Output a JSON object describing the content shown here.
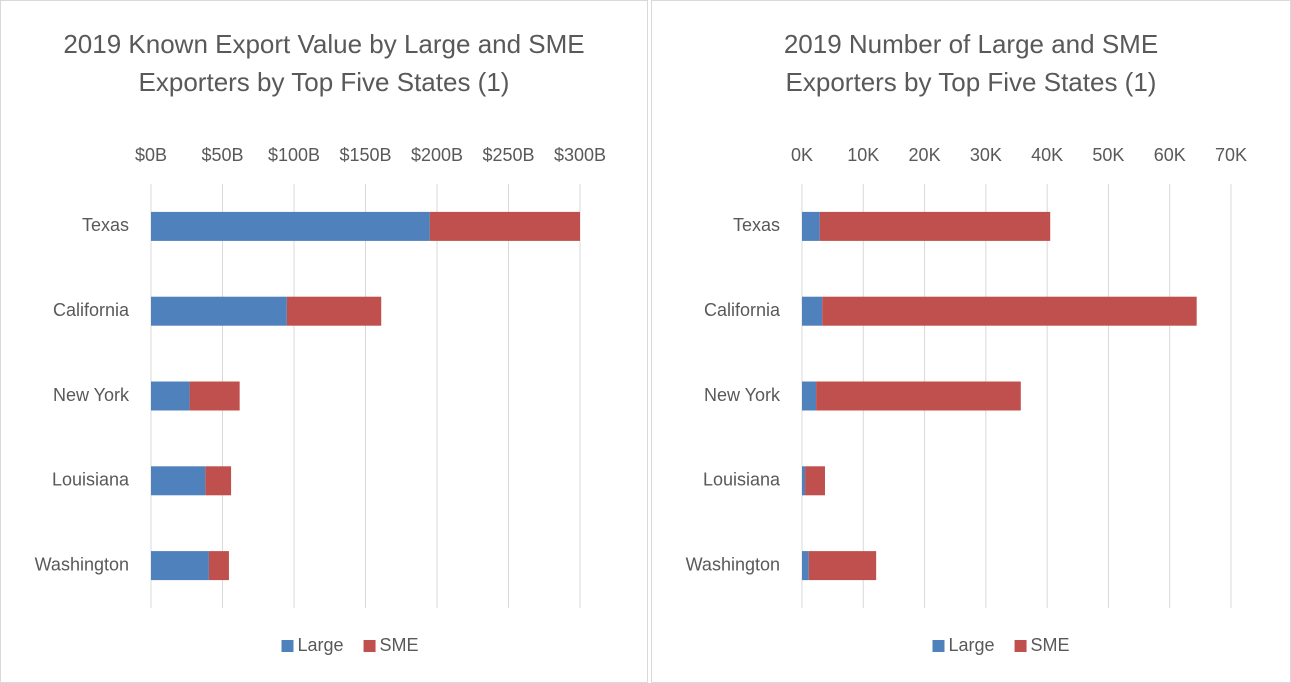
{
  "chart_data": [
    {
      "type": "stacked-barh",
      "title": "2019 Known Export Value by Large and SME Exporters by Top Five States (1)",
      "categories": [
        "Texas",
        "California",
        "New York",
        "Louisiana",
        "Washington"
      ],
      "series": [
        {
          "name": "Large",
          "color": "#4f81bd",
          "values": [
            195,
            95,
            27,
            38,
            40.5
          ]
        },
        {
          "name": "SME",
          "color": "#c0504d",
          "values": [
            105,
            66,
            35,
            18,
            14
          ]
        }
      ],
      "xlim": [
        0,
        300
      ],
      "xticks": [
        {
          "value": 0,
          "label": "$0B"
        },
        {
          "value": 50,
          "label": "$50B"
        },
        {
          "value": 100,
          "label": "$100B"
        },
        {
          "value": 150,
          "label": "$150B"
        },
        {
          "value": 200,
          "label": "$200B"
        },
        {
          "value": 250,
          "label": "$250B"
        },
        {
          "value": 300,
          "label": "$300B"
        }
      ],
      "grid": true,
      "legend": "bottom"
    },
    {
      "type": "stacked-barh",
      "title": "2019 Number of Large and SME Exporters by Top Five States (1)",
      "categories": [
        "Texas",
        "California",
        "New York",
        "Louisiana",
        "Washington"
      ],
      "series": [
        {
          "name": "Large",
          "color": "#4f81bd",
          "values": [
            2.9,
            3.3,
            2.3,
            0.5,
            1.1
          ]
        },
        {
          "name": "SME",
          "color": "#c0504d",
          "values": [
            37.6,
            61.1,
            33.4,
            3.25,
            11
          ]
        }
      ],
      "xlim": [
        0,
        70
      ],
      "xticks": [
        {
          "value": 0,
          "label": "0K"
        },
        {
          "value": 10,
          "label": "10K"
        },
        {
          "value": 20,
          "label": "20K"
        },
        {
          "value": 30,
          "label": "30K"
        },
        {
          "value": 40,
          "label": "40K"
        },
        {
          "value": 50,
          "label": "50K"
        },
        {
          "value": 60,
          "label": "60K"
        },
        {
          "value": 70,
          "label": "70K"
        }
      ],
      "grid": true,
      "legend": "bottom"
    }
  ]
}
